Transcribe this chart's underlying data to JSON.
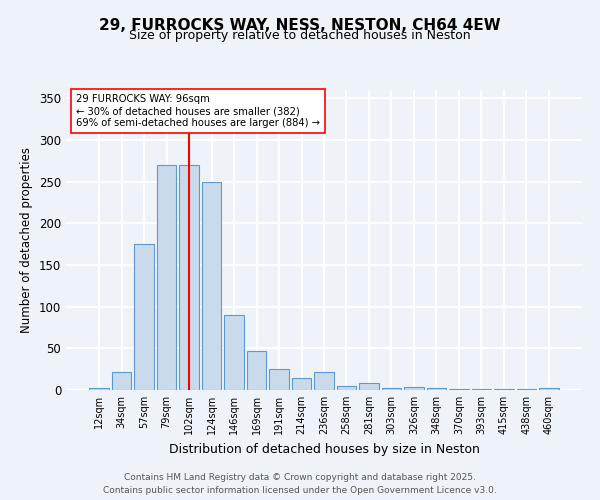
{
  "title_line1": "29, FURROCKS WAY, NESS, NESTON, CH64 4EW",
  "title_line2": "Size of property relative to detached houses in Neston",
  "xlabel": "Distribution of detached houses by size in Neston",
  "ylabel": "Number of detached properties",
  "categories": [
    "12sqm",
    "34sqm",
    "57sqm",
    "79sqm",
    "102sqm",
    "124sqm",
    "146sqm",
    "169sqm",
    "191sqm",
    "214sqm",
    "236sqm",
    "258sqm",
    "281sqm",
    "303sqm",
    "326sqm",
    "348sqm",
    "370sqm",
    "393sqm",
    "415sqm",
    "438sqm",
    "460sqm"
  ],
  "values": [
    2,
    22,
    175,
    270,
    270,
    250,
    90,
    47,
    25,
    15,
    22,
    5,
    8,
    2,
    4,
    2,
    1,
    1,
    1,
    1,
    2
  ],
  "bar_color": "#c9daea",
  "bar_edge_color": "#5b9bd5",
  "vline_color": "red",
  "vline_pos": 4.0,
  "annotation_text": "29 FURROCKS WAY: 96sqm\n← 30% of detached houses are smaller (382)\n69% of semi-detached houses are larger (884) →",
  "annotation_box_color": "white",
  "annotation_box_edge_color": "red",
  "ylim": [
    0,
    360
  ],
  "yticks": [
    0,
    50,
    100,
    150,
    200,
    250,
    300,
    350
  ],
  "footer_line1": "Contains HM Land Registry data © Crown copyright and database right 2025.",
  "footer_line2": "Contains public sector information licensed under the Open Government Licence v3.0.",
  "bg_color": "#eef2f9",
  "grid_color": "white"
}
